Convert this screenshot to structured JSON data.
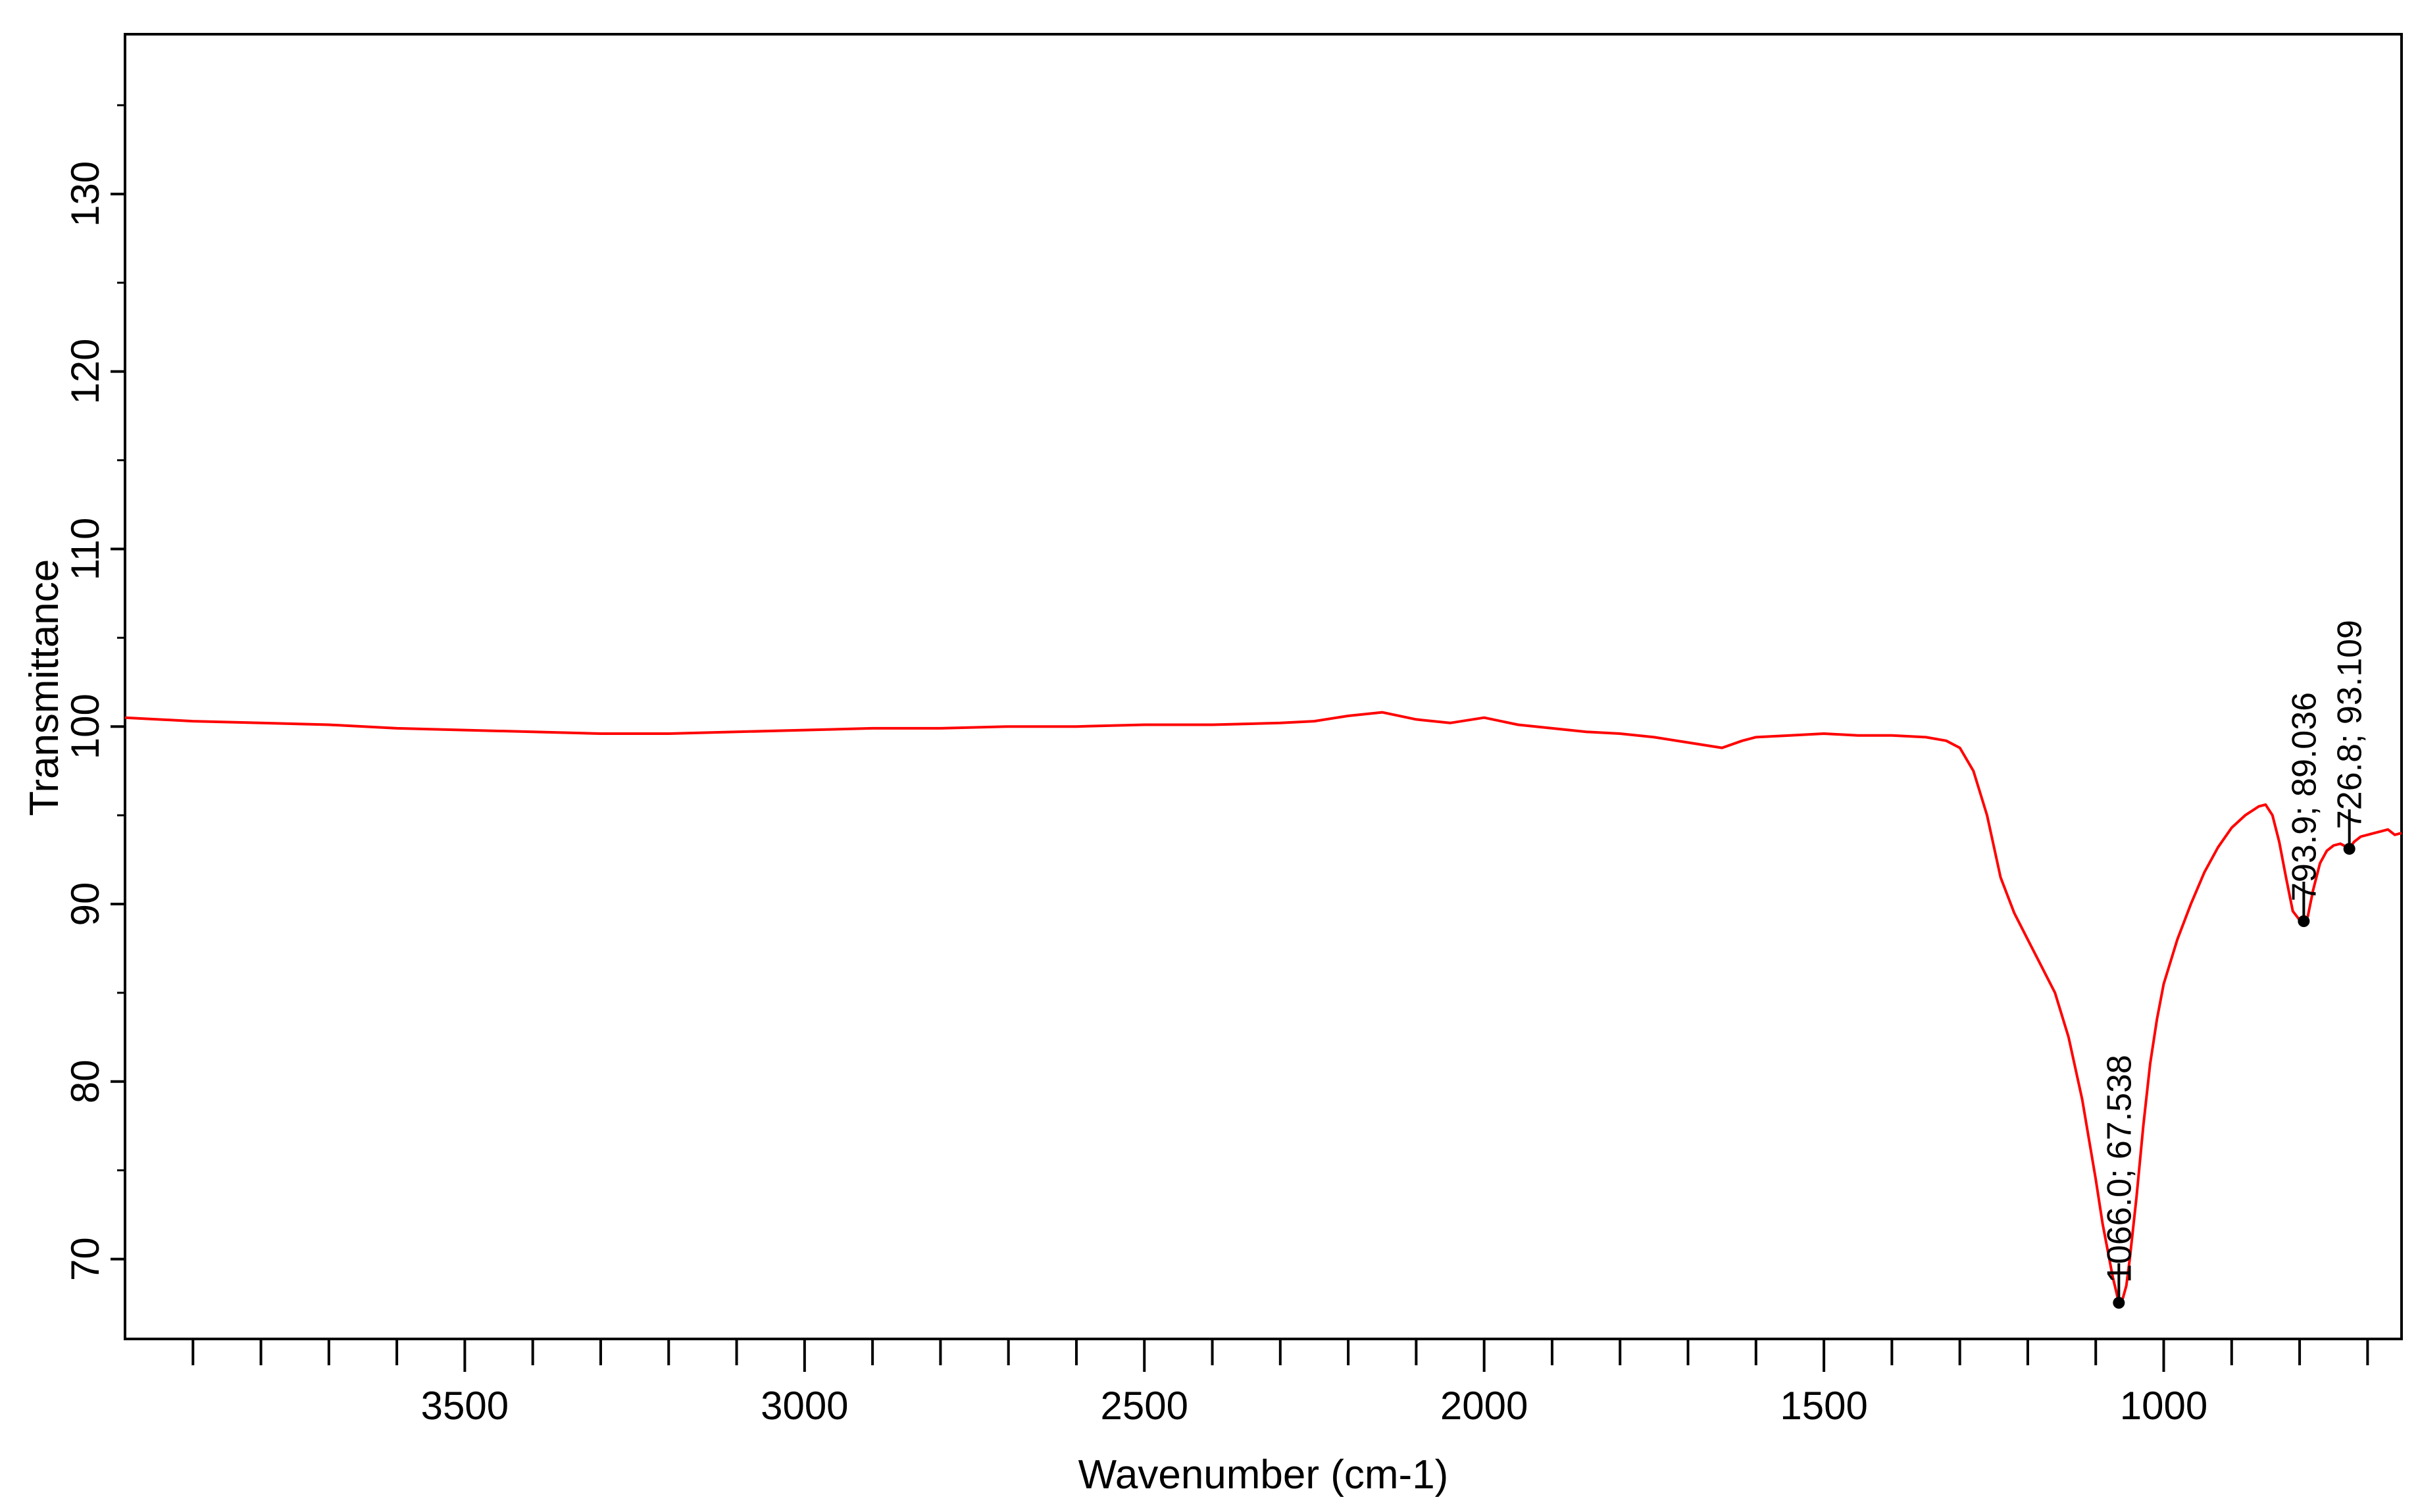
{
  "chart_data": {
    "type": "line",
    "title": "",
    "xlabel": "Wavenumber (cm-1)",
    "ylabel": "Transmittance",
    "xlim": [
      4000,
      650
    ],
    "ylim": [
      65.5,
      139
    ],
    "x_reversed": true,
    "grid": false,
    "legend": "none",
    "x_ticks": [
      3500,
      3000,
      2500,
      2000,
      1500,
      1000
    ],
    "x_tick_labels": [
      "3500",
      "3000",
      "2500",
      "2000",
      "1500",
      "1000"
    ],
    "y_ticks": [
      70,
      80,
      90,
      100,
      110,
      120,
      130
    ],
    "y_tick_labels": [
      "70",
      "80",
      "90",
      "100",
      "110",
      "120",
      "130"
    ],
    "series": [
      {
        "color": "#ff0000",
        "x": [
          4000,
          3900,
          3800,
          3700,
          3600,
          3500,
          3400,
          3300,
          3200,
          3100,
          3000,
          2900,
          2800,
          2700,
          2600,
          2500,
          2400,
          2300,
          2250,
          2200,
          2150,
          2100,
          2050,
          2000,
          1950,
          1900,
          1850,
          1800,
          1750,
          1700,
          1650,
          1620,
          1600,
          1550,
          1500,
          1450,
          1400,
          1350,
          1320,
          1300,
          1280,
          1260,
          1240,
          1220,
          1200,
          1180,
          1160,
          1140,
          1120,
          1100,
          1090,
          1080,
          1075,
          1070,
          1066,
          1060,
          1055,
          1050,
          1040,
          1030,
          1020,
          1010,
          1000,
          980,
          960,
          940,
          920,
          900,
          880,
          860,
          850,
          840,
          830,
          820,
          810,
          800,
          794,
          788,
          780,
          770,
          760,
          750,
          740,
          730,
          727,
          720,
          710,
          700,
          690,
          680,
          670,
          660,
          650
        ],
        "y": [
          100.5,
          100.3,
          100.2,
          100.1,
          99.9,
          99.8,
          99.7,
          99.6,
          99.6,
          99.7,
          99.8,
          99.9,
          99.9,
          100.0,
          100.0,
          100.1,
          100.1,
          100.2,
          100.3,
          100.6,
          100.8,
          100.4,
          100.2,
          100.5,
          100.1,
          99.9,
          99.7,
          99.6,
          99.4,
          99.1,
          98.8,
          99.2,
          99.4,
          99.5,
          99.6,
          99.5,
          99.5,
          99.4,
          99.2,
          98.8,
          97.5,
          95.0,
          91.5,
          89.5,
          88.0,
          86.5,
          85.0,
          82.5,
          79.0,
          74.5,
          72.0,
          70.0,
          69.0,
          68.2,
          67.5,
          67.8,
          68.5,
          70.0,
          73.5,
          77.5,
          81.0,
          83.5,
          85.5,
          88.0,
          90.0,
          91.8,
          93.2,
          94.3,
          95.0,
          95.5,
          95.6,
          95.0,
          93.5,
          91.5,
          89.6,
          89.1,
          89.0,
          89.3,
          90.8,
          92.3,
          93.0,
          93.3,
          93.4,
          93.2,
          93.1,
          93.5,
          93.8,
          93.9,
          94.0,
          94.1,
          94.2,
          93.9,
          94.0
        ]
      }
    ],
    "annotations": [
      {
        "x": 1066.0,
        "y": 67.538,
        "text": "1066.0; 67.538"
      },
      {
        "x": 793.9,
        "y": 89.036,
        "text": "793.9; 89.036"
      },
      {
        "x": 726.8,
        "y": 93.109,
        "text": "726.8; 93.109"
      }
    ]
  }
}
